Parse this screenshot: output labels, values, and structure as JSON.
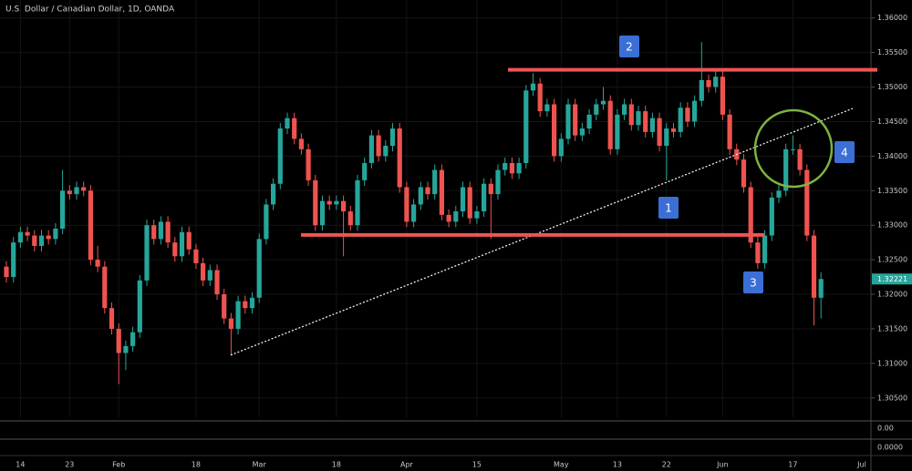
{
  "chart_data": {
    "type": "candlestick",
    "title": "U.S. Dollar / Canadian Dollar, 1D, OANDA",
    "categories": [
      null,
      null,
      "14",
      null,
      null,
      null,
      null,
      null,
      null,
      "23",
      null,
      null,
      null,
      null,
      null,
      null,
      "Feb",
      null,
      null,
      null,
      null,
      null,
      null,
      null,
      null,
      null,
      null,
      "18",
      null,
      null,
      null,
      null,
      null,
      null,
      null,
      null,
      "Mar",
      null,
      null,
      null,
      null,
      null,
      null,
      null,
      null,
      null,
      null,
      "18",
      null,
      null,
      null,
      null,
      null,
      null,
      null,
      null,
      null,
      "Apr",
      null,
      null,
      null,
      null,
      null,
      null,
      null,
      null,
      null,
      "15",
      null,
      null,
      null,
      null,
      null,
      null,
      null,
      null,
      null,
      null,
      null,
      "May",
      null,
      null,
      null,
      null,
      null,
      null,
      null,
      "13",
      null,
      null,
      null,
      null,
      null,
      null,
      "22",
      null,
      null,
      null,
      null,
      null,
      null,
      null,
      "Jun",
      null,
      null,
      null,
      null,
      null,
      null,
      null,
      null,
      null,
      "17",
      null,
      null,
      null,
      null
    ],
    "axis_end_label": "Jul",
    "open": [
      1.324,
      1.3225,
      1.3275,
      1.329,
      1.3285,
      1.327,
      1.3285,
      1.328,
      1.3295,
      1.335,
      1.3345,
      1.3355,
      1.335,
      1.325,
      1.324,
      1.318,
      1.315,
      1.3115,
      1.3125,
      1.3145,
      1.322,
      1.33,
      1.328,
      1.3305,
      1.3275,
      1.3255,
      1.329,
      1.3265,
      1.3245,
      1.322,
      1.3235,
      1.32,
      1.3165,
      1.315,
      1.319,
      1.318,
      1.3195,
      1.328,
      1.333,
      1.336,
      1.344,
      1.3455,
      1.3425,
      1.341,
      1.3365,
      1.33,
      1.3335,
      1.333,
      1.3335,
      1.332,
      1.33,
      1.3365,
      1.339,
      1.343,
      1.34,
      1.3415,
      1.344,
      1.3355,
      1.3305,
      1.333,
      1.3355,
      1.3345,
      1.338,
      1.3315,
      1.3305,
      1.332,
      1.3355,
      1.331,
      1.332,
      1.336,
      1.3345,
      1.338,
      1.339,
      1.3375,
      1.339,
      1.3495,
      1.3505,
      1.3465,
      1.3475,
      1.34,
      1.3425,
      1.3475,
      1.343,
      1.344,
      1.346,
      1.3475,
      1.348,
      1.341,
      1.346,
      1.3475,
      1.3445,
      1.3465,
      1.3435,
      1.3455,
      1.3415,
      1.344,
      1.3435,
      1.347,
      1.345,
      1.348,
      1.351,
      1.35,
      1.3515,
      1.346,
      1.341,
      1.3395,
      1.3355,
      1.3275,
      1.3245,
      1.3285,
      1.334,
      1.335,
      1.341,
      1.341,
      1.338,
      1.3285,
      1.3195
    ],
    "high": [
      1.3248,
      1.3283,
      1.3298,
      1.3298,
      1.3293,
      1.3293,
      1.3293,
      1.3303,
      1.338,
      1.3358,
      1.3363,
      1.3363,
      1.3358,
      1.327,
      1.3248,
      1.3188,
      1.3158,
      1.3133,
      1.3153,
      1.3228,
      1.3308,
      1.3308,
      1.3313,
      1.3313,
      1.3283,
      1.3298,
      1.3298,
      1.3273,
      1.3253,
      1.3243,
      1.3243,
      1.3208,
      1.3173,
      1.3198,
      1.3198,
      1.3203,
      1.3288,
      1.3338,
      1.3368,
      1.3448,
      1.3463,
      1.3463,
      1.3433,
      1.3418,
      1.3373,
      1.3343,
      1.3343,
      1.3343,
      1.3343,
      1.3328,
      1.3373,
      1.3398,
      1.3438,
      1.3438,
      1.3423,
      1.3448,
      1.3448,
      1.3363,
      1.3338,
      1.3363,
      1.3363,
      1.3388,
      1.3388,
      1.3323,
      1.3328,
      1.3363,
      1.3363,
      1.3328,
      1.3368,
      1.3368,
      1.3388,
      1.3398,
      1.3398,
      1.3398,
      1.3503,
      1.352,
      1.3513,
      1.3483,
      1.3483,
      1.3433,
      1.3483,
      1.3483,
      1.3448,
      1.3468,
      1.3483,
      1.35,
      1.3488,
      1.3468,
      1.3483,
      1.3483,
      1.3473,
      1.3473,
      1.3463,
      1.3463,
      1.3448,
      1.3448,
      1.3478,
      1.3478,
      1.3488,
      1.3565,
      1.3518,
      1.3523,
      1.3523,
      1.3468,
      1.3418,
      1.3403,
      1.3363,
      1.3283,
      1.3293,
      1.3348,
      1.3358,
      1.3418,
      1.343,
      1.3418,
      1.3388,
      1.3293,
      1.3232
    ],
    "low": [
      1.3217,
      1.3217,
      1.3267,
      1.3277,
      1.3262,
      1.3262,
      1.3272,
      1.3272,
      1.3287,
      1.3337,
      1.3337,
      1.3342,
      1.3242,
      1.3232,
      1.3172,
      1.3142,
      1.307,
      1.309,
      1.3117,
      1.3137,
      1.3212,
      1.3272,
      1.3272,
      1.3267,
      1.3247,
      1.3247,
      1.3257,
      1.3237,
      1.3212,
      1.3212,
      1.3192,
      1.3157,
      1.3112,
      1.3142,
      1.3172,
      1.3172,
      1.3187,
      1.3272,
      1.3322,
      1.3352,
      1.3432,
      1.3417,
      1.3402,
      1.3357,
      1.3292,
      1.3292,
      1.3322,
      1.3322,
      1.3255,
      1.3292,
      1.3292,
      1.3357,
      1.3382,
      1.3392,
      1.3392,
      1.3407,
      1.3347,
      1.3297,
      1.3297,
      1.3322,
      1.3337,
      1.3337,
      1.3307,
      1.3297,
      1.3297,
      1.3312,
      1.3302,
      1.3302,
      1.3312,
      1.328,
      1.3337,
      1.3372,
      1.3367,
      1.3367,
      1.3382,
      1.3487,
      1.3457,
      1.3457,
      1.3392,
      1.3392,
      1.3417,
      1.3422,
      1.3422,
      1.3432,
      1.3452,
      1.3467,
      1.3402,
      1.3402,
      1.3452,
      1.3437,
      1.3437,
      1.3427,
      1.3427,
      1.3407,
      1.3365,
      1.3427,
      1.3427,
      1.3442,
      1.3442,
      1.3472,
      1.3492,
      1.3492,
      1.3452,
      1.3402,
      1.3387,
      1.3347,
      1.3267,
      1.3237,
      1.3237,
      1.3277,
      1.3332,
      1.3342,
      1.3402,
      1.3372,
      1.3277,
      1.3155,
      1.3165
    ],
    "close": [
      1.3225,
      1.3275,
      1.329,
      1.3285,
      1.327,
      1.3285,
      1.328,
      1.3295,
      1.335,
      1.3345,
      1.3355,
      1.335,
      1.325,
      1.324,
      1.318,
      1.315,
      1.3115,
      1.3125,
      1.3145,
      1.322,
      1.33,
      1.328,
      1.3305,
      1.3275,
      1.3255,
      1.329,
      1.3265,
      1.3245,
      1.322,
      1.3235,
      1.32,
      1.3165,
      1.315,
      1.319,
      1.318,
      1.3195,
      1.328,
      1.333,
      1.336,
      1.344,
      1.3455,
      1.3425,
      1.341,
      1.3365,
      1.33,
      1.3335,
      1.333,
      1.3335,
      1.332,
      1.33,
      1.3365,
      1.339,
      1.343,
      1.34,
      1.3415,
      1.344,
      1.3355,
      1.3305,
      1.333,
      1.3355,
      1.3345,
      1.338,
      1.3315,
      1.3305,
      1.332,
      1.3355,
      1.331,
      1.332,
      1.336,
      1.3345,
      1.338,
      1.339,
      1.3375,
      1.339,
      1.3495,
      1.3505,
      1.3465,
      1.3475,
      1.34,
      1.3425,
      1.3475,
      1.343,
      1.344,
      1.346,
      1.3475,
      1.348,
      1.341,
      1.346,
      1.3475,
      1.3445,
      1.3465,
      1.3435,
      1.3455,
      1.3415,
      1.344,
      1.3435,
      1.347,
      1.345,
      1.348,
      1.351,
      1.35,
      1.3515,
      1.346,
      1.341,
      1.3395,
      1.3355,
      1.3275,
      1.3245,
      1.3285,
      1.334,
      1.335,
      1.341,
      1.341,
      1.338,
      1.3285,
      1.3195,
      1.32221
    ],
    "up_color": "#26a69a",
    "down_color": "#ef5350",
    "ylim": [
      1.3022,
      1.3626
    ],
    "yticks": [
      {
        "value": 1.305,
        "label": "1.30500"
      },
      {
        "value": 1.31,
        "label": "1.31000"
      },
      {
        "value": 1.315,
        "label": "1.31500"
      },
      {
        "value": 1.32,
        "label": "1.32000"
      },
      {
        "value": 1.325,
        "label": "1.32500"
      },
      {
        "value": 1.33,
        "label": "1.33000"
      },
      {
        "value": 1.335,
        "label": "1.33500"
      },
      {
        "value": 1.34,
        "label": "1.34000"
      },
      {
        "value": 1.345,
        "label": "1.34500"
      },
      {
        "value": 1.35,
        "label": "1.35000"
      },
      {
        "value": 1.355,
        "label": "1.35500"
      },
      {
        "value": 1.36,
        "label": "1.36000"
      }
    ],
    "last_price": {
      "value": 1.32221,
      "label": "1.32221"
    },
    "levels": [
      1.3525,
      1.3286
    ],
    "level_color": "#f05454",
    "trendline": {
      "start": 1.3112,
      "end": 1.3469
    },
    "annotations": [
      "1",
      "2",
      "3",
      "4"
    ],
    "annotation_color": "#3b6fd6",
    "circle_color": "#7cb342",
    "indicator_labels": [
      "0.00",
      "0.0000"
    ]
  }
}
